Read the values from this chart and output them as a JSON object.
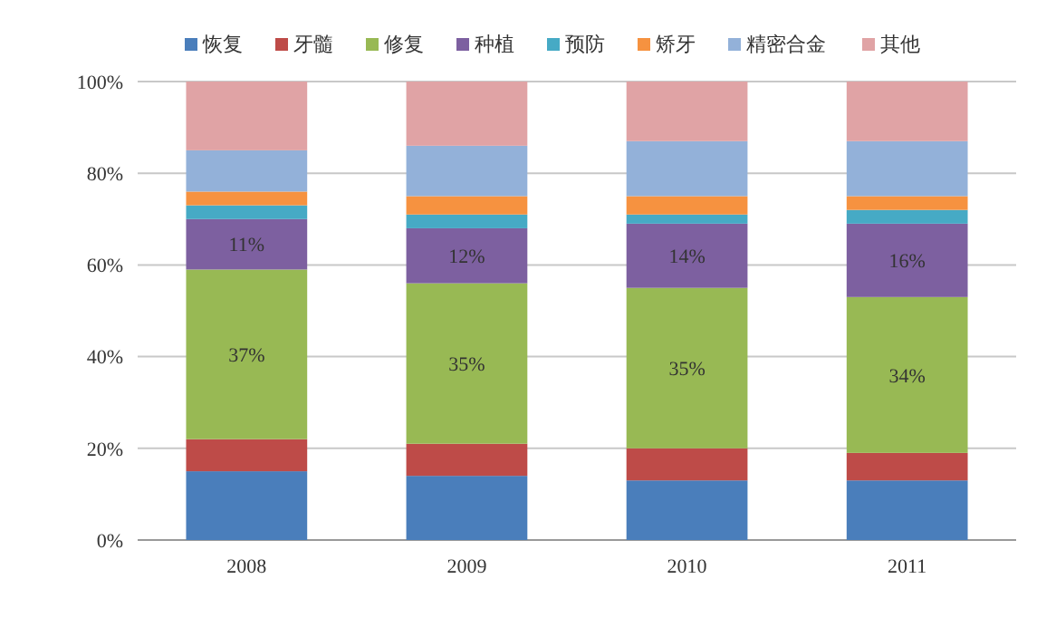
{
  "chart_data": {
    "type": "bar",
    "stacked": true,
    "categories": [
      "2008",
      "2009",
      "2010",
      "2011"
    ],
    "series": [
      {
        "name": "恢复",
        "color": "#4a7ebb",
        "values": [
          15,
          14,
          13,
          13
        ]
      },
      {
        "name": "牙髓",
        "color": "#be4b48",
        "values": [
          7,
          7,
          7,
          6
        ]
      },
      {
        "name": "修复",
        "color": "#98b954",
        "values": [
          37,
          35,
          35,
          34
        ],
        "value_labels": [
          "37%",
          "35%",
          "35%",
          "34%"
        ]
      },
      {
        "name": "种植",
        "color": "#7d60a0",
        "values": [
          11,
          12,
          14,
          16
        ],
        "value_labels": [
          "11%",
          "12%",
          "14%",
          "16%"
        ]
      },
      {
        "name": "预防",
        "color": "#46aac5",
        "values": [
          3,
          3,
          2,
          3
        ]
      },
      {
        "name": "矫牙",
        "color": "#f69240",
        "values": [
          3,
          4,
          4,
          3
        ]
      },
      {
        "name": "精密合金",
        "color": "#93b1d9",
        "values": [
          9,
          11,
          12,
          12
        ]
      },
      {
        "name": "其他",
        "color": "#e0a3a5",
        "values": [
          15,
          14,
          13,
          13
        ]
      }
    ],
    "ylim": [
      0,
      100
    ],
    "yticks": [
      {
        "value": 0,
        "label": "0%"
      },
      {
        "value": 20,
        "label": "20%"
      },
      {
        "value": 40,
        "label": "40%"
      },
      {
        "value": 60,
        "label": "60%"
      },
      {
        "value": 80,
        "label": "80%"
      },
      {
        "value": 100,
        "label": "100%"
      }
    ],
    "grid": "y",
    "legend": "top"
  }
}
